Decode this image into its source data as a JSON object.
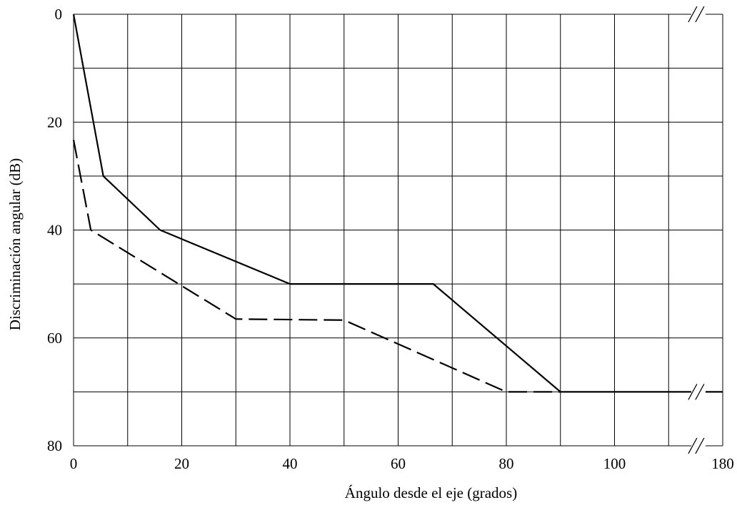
{
  "chart_data": {
    "type": "line",
    "xlabel": "Ángulo desde el eje (grados)",
    "ylabel": "Discriminación angular (dB)",
    "xlim": [
      0,
      180
    ],
    "ylim": [
      0,
      80
    ],
    "y_axis_inverted": true,
    "x_axis_break": "between 100 and 180",
    "grid": true,
    "x_gridlines": [
      0,
      10,
      20,
      30,
      40,
      50,
      60,
      70,
      80,
      90,
      100,
      110,
      180
    ],
    "y_gridlines": [
      0,
      10,
      20,
      30,
      40,
      50,
      60,
      70,
      80
    ],
    "x_tick_labels": [
      "0",
      "20",
      "40",
      "60",
      "80",
      "100",
      "180"
    ],
    "y_tick_labels": [
      "0",
      "20",
      "40",
      "60",
      "80"
    ],
    "series": [
      {
        "style": "solid",
        "points": [
          [
            0,
            0
          ],
          [
            5.5,
            30
          ],
          [
            16,
            40
          ],
          [
            40,
            50
          ],
          [
            66.5,
            50
          ],
          [
            90,
            70
          ],
          [
            180,
            70
          ]
        ]
      },
      {
        "style": "dashed",
        "points": [
          [
            0,
            23.3
          ],
          [
            3.2,
            40
          ],
          [
            30,
            56.5
          ],
          [
            50,
            56.7
          ],
          [
            80,
            70
          ],
          [
            90,
            70
          ]
        ]
      }
    ]
  }
}
